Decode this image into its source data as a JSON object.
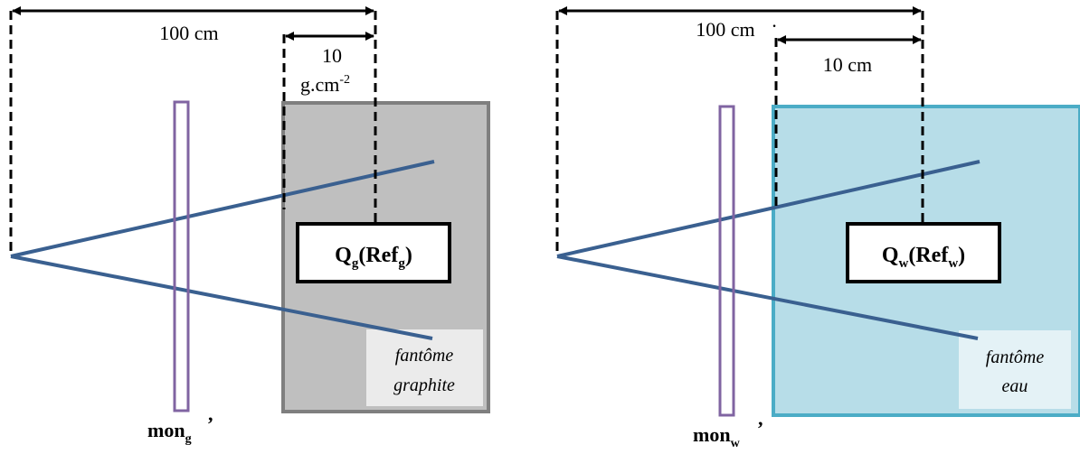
{
  "left": {
    "dist_total_label": "100 cm",
    "depth_value": "10",
    "depth_unit": "g.cm",
    "depth_unit_exp": "-2",
    "chamber_main": "Q",
    "chamber_sub": "g",
    "chamber_paren_open": "(Ref",
    "chamber_ref_sub": "g",
    "chamber_paren_close": ")",
    "phantom_line1": "fantôme",
    "phantom_line2": "graphite",
    "monitor_main": "mon",
    "monitor_sub": "g",
    "monitor_mark": ","
  },
  "right": {
    "dist_total_label": "100 cm",
    "dist_total_mark": "·",
    "depth_label": "10 cm",
    "chamber_main": "Q",
    "chamber_sub": "w",
    "chamber_paren_open": "(Ref",
    "chamber_ref_sub": "w",
    "chamber_paren_close": ")",
    "phantom_line1": "fantôme",
    "phantom_line2": "eau",
    "monitor_main": "mon",
    "monitor_sub": "w",
    "monitor_mark": ","
  },
  "colors": {
    "beam": "#3a6090",
    "monitor": "#8064a2",
    "graphite_fill": "#bfbfbf",
    "graphite_border": "#7f7f7f",
    "water_fill": "#b7dde8",
    "water_border": "#4bacc6",
    "label_box_graphite": "#ebebeb",
    "label_box_water": "#e4f2f6"
  }
}
